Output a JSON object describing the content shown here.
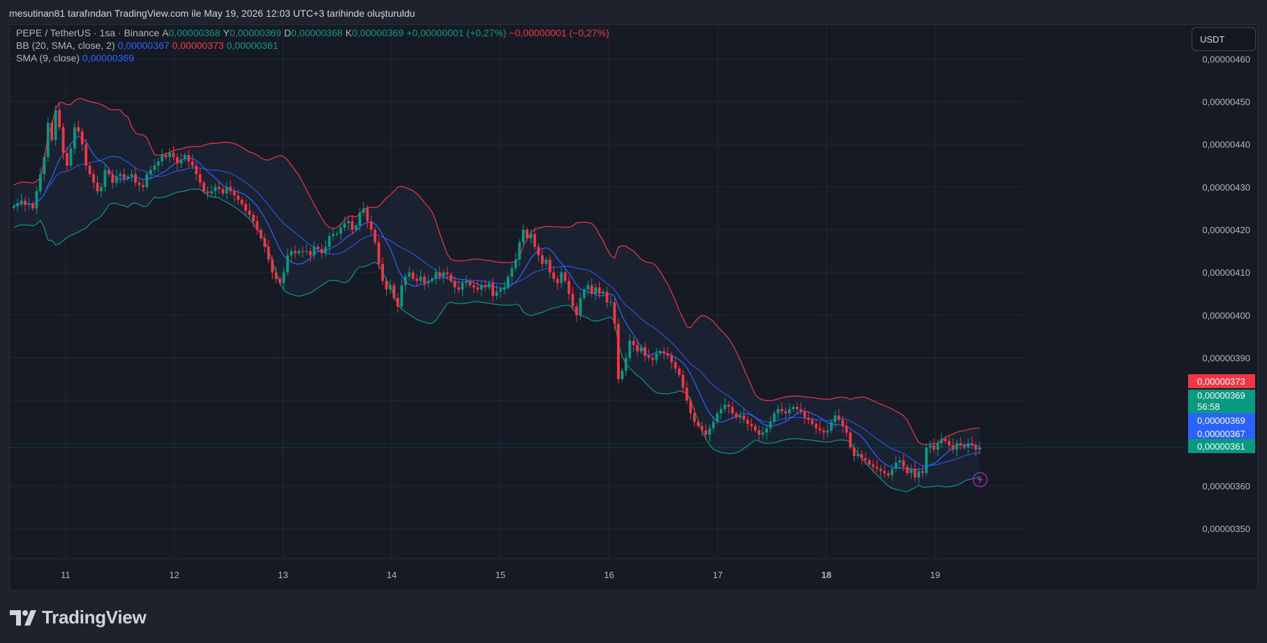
{
  "header": {
    "text": "mesutinan81 tarafından TradingView.com ile May 19, 2026 12:03 UTC+3 tarihinde oluşturuldu"
  },
  "legend": {
    "symbol": "PEPE / TetherUS · 1sa · Binance",
    "open_label": "A",
    "open": "0,00000368",
    "high_label": "Y",
    "high": "0,00000369",
    "low_label": "D",
    "low": "0,00000368",
    "close_label": "K",
    "close": "0,00000369",
    "change": "+0,00000001 (+0,27%)",
    "change_neg": "−0,00000001 (−0,27%)",
    "bb_label": "BB (20, SMA, close, 2)",
    "bb_basis": "0,00000367",
    "bb_upper": "0,00000373",
    "bb_lower": "0,00000361",
    "sma_label": "SMA (9, close)",
    "sma_value": "0,00000369"
  },
  "currency_button": "USDT",
  "price_badges": {
    "upper": "0,00000373",
    "last": "0,00000369",
    "countdown": "56:58",
    "sma": "0,00000369",
    "basis": "0,00000367",
    "lower": "0,00000361"
  },
  "brand": {
    "name": "TradingView"
  },
  "colors": {
    "up": "#089981",
    "down": "#f23645",
    "upper_band": "#f23645",
    "lower_band": "#089981",
    "basis": "#2962ff",
    "sma": "#2962ff",
    "fill": "#1f2a40"
  },
  "chart_data": {
    "type": "candlestick",
    "title": "PEPE / TetherUS · 1sa · Binance",
    "ylim": [
      3.43e-06,
      4.63e-06
    ],
    "yticks": [
      3.5e-06,
      3.6e-06,
      3.7e-06,
      3.8e-06,
      3.9e-06,
      4e-06,
      4.1e-06,
      4.2e-06,
      4.3e-06,
      4.4e-06,
      4.5e-06,
      4.6e-06
    ],
    "ytick_labels": [
      "0,00000350",
      "0,00000360",
      "0,00000370",
      "0,00000380",
      "0,00000390",
      "0,00000400",
      "0,00000410",
      "0,00000420",
      "0,00000430",
      "0,00000440",
      "0,00000450",
      "0,00000460"
    ],
    "xticks": [
      "11",
      "12",
      "13",
      "14",
      "15",
      "16",
      "17",
      "18",
      "19"
    ],
    "grid": true,
    "close_series": [
      4.255,
      4.262,
      4.268,
      4.258,
      4.261,
      4.25,
      4.29,
      4.33,
      4.37,
      4.45,
      4.41,
      4.48,
      4.44,
      4.38,
      4.35,
      4.39,
      4.44,
      4.43,
      4.4,
      4.35,
      4.33,
      4.31,
      4.29,
      4.3,
      4.34,
      4.33,
      4.31,
      4.325,
      4.33,
      4.32,
      4.325,
      4.33,
      4.31,
      4.305,
      4.3,
      4.33,
      4.34,
      4.35,
      4.36,
      4.375,
      4.37,
      4.38,
      4.37,
      4.355,
      4.365,
      4.375,
      4.36,
      4.35,
      4.33,
      4.31,
      4.29,
      4.285,
      4.29,
      4.3,
      4.295,
      4.285,
      4.3,
      4.29,
      4.28,
      4.27,
      4.26,
      4.245,
      4.235,
      4.22,
      4.2,
      4.18,
      4.16,
      4.13,
      4.1,
      4.085,
      4.075,
      4.1,
      4.14,
      4.15,
      4.145,
      4.15,
      4.148,
      4.15,
      4.14,
      4.16,
      4.155,
      4.145,
      4.16,
      4.185,
      4.19,
      4.19,
      4.205,
      4.215,
      4.22,
      4.2,
      4.21,
      4.24,
      4.25,
      4.22,
      4.2,
      4.17,
      4.12,
      4.08,
      4.06,
      4.07,
      4.04,
      4.02,
      4.07,
      4.09,
      4.1,
      4.085,
      4.08,
      4.09,
      4.075,
      4.08,
      4.085,
      4.1,
      4.09,
      4.1,
      4.095,
      4.08,
      4.065,
      4.06,
      4.075,
      4.08,
      4.07,
      4.065,
      4.06,
      4.07,
      4.065,
      4.075,
      4.045,
      4.055,
      4.06,
      4.065,
      4.09,
      4.11,
      4.13,
      4.17,
      4.2,
      4.18,
      4.19,
      4.16,
      4.14,
      4.12,
      4.13,
      4.1,
      4.085,
      4.075,
      4.1,
      4.08,
      4.05,
      4.02,
      4.0,
      4.04,
      4.06,
      4.07,
      4.05,
      4.065,
      4.05,
      4.055,
      4.03,
      4.03,
      3.98,
      3.85,
      3.87,
      3.9,
      3.94,
      3.93,
      3.915,
      3.925,
      3.905,
      3.9,
      3.895,
      3.91,
      3.915,
      3.91,
      3.905,
      3.89,
      3.875,
      3.86,
      3.83,
      3.8,
      3.77,
      3.75,
      3.74,
      3.73,
      3.72,
      3.735,
      3.75,
      3.77,
      3.78,
      3.79,
      3.785,
      3.77,
      3.76,
      3.765,
      3.755,
      3.745,
      3.74,
      3.73,
      3.72,
      3.725,
      3.735,
      3.75,
      3.77,
      3.78,
      3.775,
      3.77,
      3.78,
      3.785,
      3.78,
      3.775,
      3.76,
      3.755,
      3.745,
      3.735,
      3.73,
      3.725,
      3.73,
      3.75,
      3.765,
      3.755,
      3.74,
      3.725,
      3.69,
      3.67,
      3.675,
      3.665,
      3.66,
      3.65,
      3.645,
      3.64,
      3.635,
      3.63,
      3.625,
      3.64,
      3.655,
      3.66,
      3.645,
      3.63,
      3.64,
      3.62,
      3.635,
      3.63,
      3.69,
      3.695,
      3.685,
      3.7,
      3.71,
      3.705,
      3.695,
      3.685,
      3.7,
      3.695,
      3.69,
      3.7,
      3.695,
      3.685,
      3.69
    ],
    "series": [
      {
        "name": "BB (20, SMA, close, 2) upper"
      },
      {
        "name": "BB (20, SMA, close, 2) basis"
      },
      {
        "name": "BB (20, SMA, close, 2) lower"
      },
      {
        "name": "SMA (9, close)"
      }
    ],
    "last_price": 3.69e-06
  }
}
